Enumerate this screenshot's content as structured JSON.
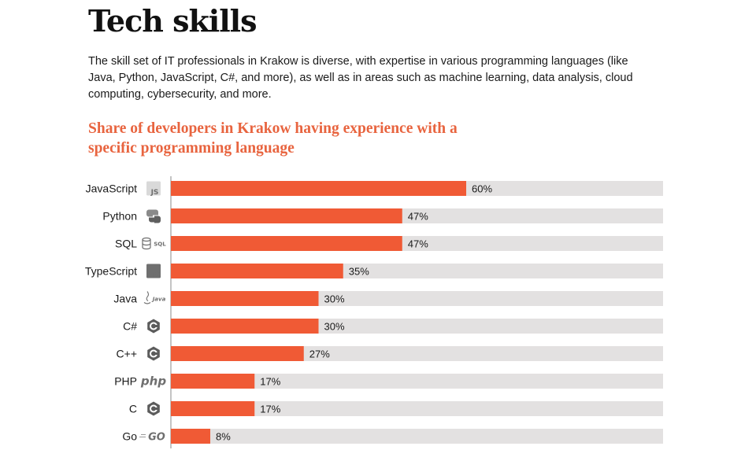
{
  "header": {
    "title": "Tech skills",
    "intro": "The skill set of IT professionals in Krakow is diverse, with expertise in various programming languages (like Java, Python, JavaScript, C#, and more), as well as in areas such as machine learning, data analysis, cloud computing, cybersecurity, and more."
  },
  "chart_data": {
    "type": "bar",
    "orientation": "horizontal",
    "title": "Share of developers in Krakow having experience with a specific programming language",
    "categories": [
      "JavaScript",
      "Python",
      "SQL",
      "TypeScript",
      "Java",
      "C#",
      "C++",
      "PHP",
      "C",
      "Go"
    ],
    "values": [
      60,
      47,
      47,
      35,
      30,
      30,
      27,
      17,
      17,
      8
    ],
    "value_labels": [
      "60%",
      "47%",
      "47%",
      "35%",
      "30%",
      "30%",
      "27%",
      "17%",
      "17%",
      "8%"
    ],
    "icons": [
      "js-icon",
      "python-icon",
      "sql-icon",
      "typescript-icon",
      "java-icon",
      "csharp-icon",
      "cpp-icon",
      "php-icon",
      "c-icon",
      "go-icon"
    ],
    "unit": "%",
    "xlim": [
      0,
      100
    ],
    "grid": false,
    "legend": "none",
    "colors": {
      "bar": "#f05a35",
      "track": "#e3e1e1",
      "title": "#e8643f",
      "icon": "#6f6f6f"
    }
  }
}
